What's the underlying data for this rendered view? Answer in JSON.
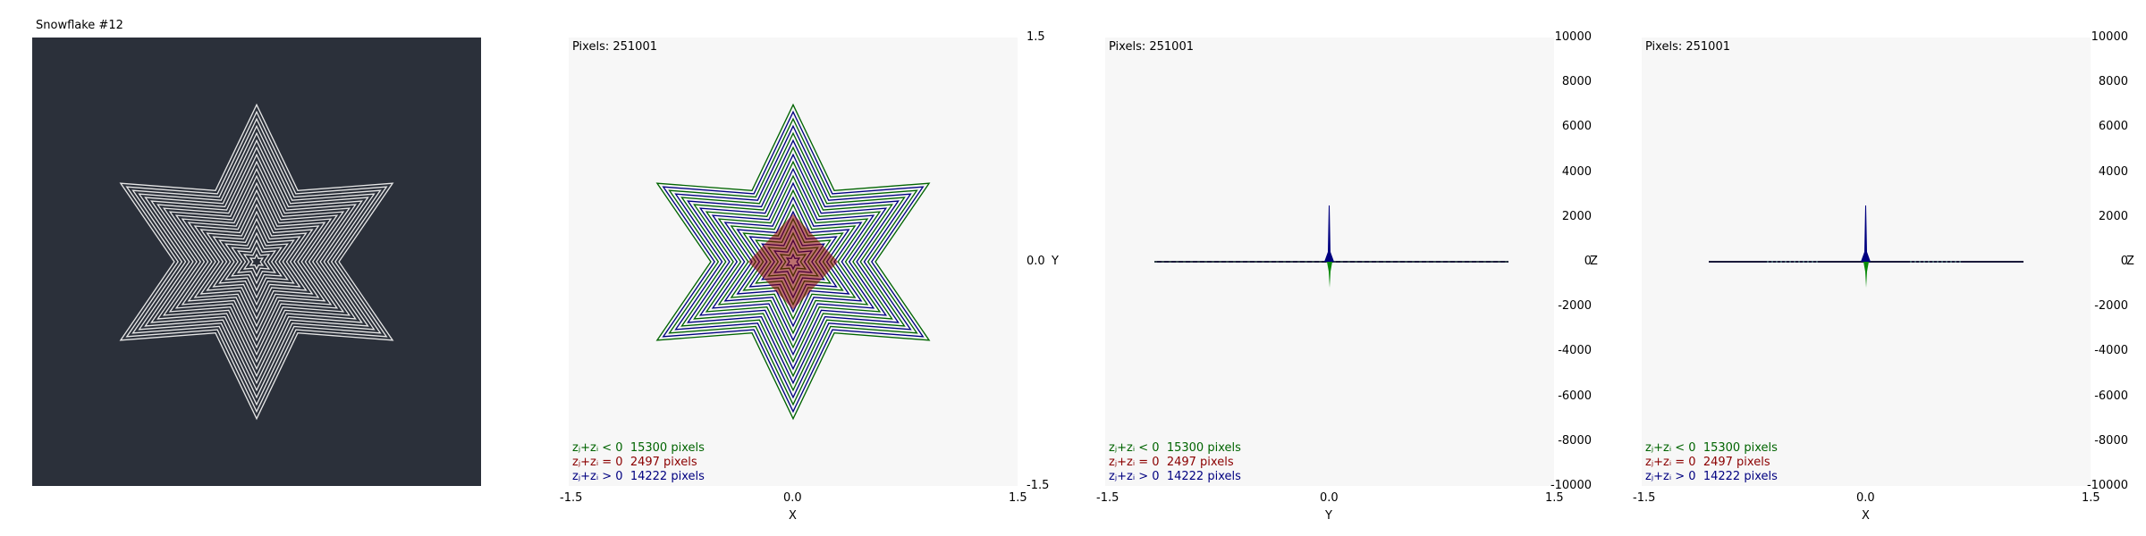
{
  "window": {
    "title": "Snowflake #12"
  },
  "colors": {
    "neg": "#006400",
    "zero": "#8b0000",
    "pos": "#000080",
    "dark_bg": "#2b303a",
    "plot_bg": "#f7f7f7"
  },
  "icons": {
    "snowflake": "snowflake-fractal"
  },
  "plots": [
    {
      "pixels_label": "Pixels: 251001",
      "x_ticks": [
        "-1.5",
        "0.0",
        "1.5"
      ],
      "x_label": "X",
      "y_ticks": [
        "1.5",
        "0.0",
        "-1.5"
      ],
      "y_label": "Y",
      "legend": [
        {
          "label": "zⱼ+zᵢ < 0",
          "count": "15300 pixels"
        },
        {
          "label": "zⱼ+zᵢ = 0",
          "count": "2497 pixels"
        },
        {
          "label": "zⱼ+zᵢ > 0",
          "count": "14222 pixels"
        }
      ]
    },
    {
      "pixels_label": "Pixels: 251001",
      "x_ticks": [
        "-1.5",
        "0.0",
        "1.5"
      ],
      "x_label": "Y",
      "y_ticks": [
        "10000",
        "8000",
        "6000",
        "4000",
        "2000",
        "0",
        "-2000",
        "-4000",
        "-6000",
        "-8000",
        "-10000"
      ],
      "y_label": "Z",
      "legend": [
        {
          "label": "zⱼ+zᵢ < 0",
          "count": "15300 pixels"
        },
        {
          "label": "zⱼ+zᵢ = 0",
          "count": "2497 pixels"
        },
        {
          "label": "zⱼ+zᵢ > 0",
          "count": "14222 pixels"
        }
      ]
    },
    {
      "pixels_label": "Pixels: 251001",
      "x_ticks": [
        "-1.5",
        "0.0",
        "1.5"
      ],
      "x_label": "X",
      "y_ticks": [
        "10000",
        "8000",
        "6000",
        "4000",
        "2000",
        "0",
        "-2000",
        "-4000",
        "-6000",
        "-8000",
        "-10000"
      ],
      "y_label": "Z",
      "legend": [
        {
          "label": "zⱼ+zᵢ < 0",
          "count": "15300 pixels"
        },
        {
          "label": "zⱼ+zᵢ = 0",
          "count": "2497 pixels"
        },
        {
          "label": "zⱼ+zᵢ > 0",
          "count": "14222 pixels"
        }
      ]
    }
  ]
}
